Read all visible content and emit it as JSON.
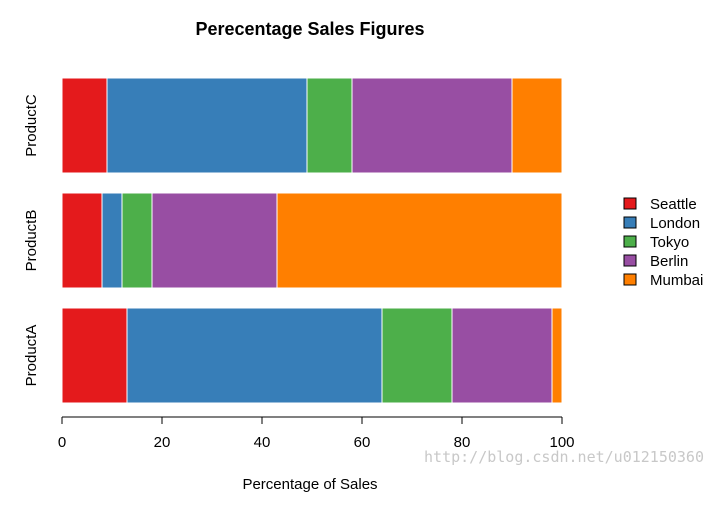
{
  "chart_data": {
    "type": "bar",
    "orientation": "horizontal",
    "stacked": true,
    "title": "Perecentage Sales Figures",
    "xlabel": "Percentage of Sales",
    "ylabel": "",
    "xlim": [
      0,
      100
    ],
    "x_ticks": [
      0,
      20,
      40,
      60,
      80,
      100
    ],
    "categories": [
      "ProductA",
      "ProductB",
      "ProductC"
    ],
    "series": [
      {
        "name": "Seattle",
        "color": "#e41a1c",
        "values": [
          13,
          8,
          9
        ]
      },
      {
        "name": "London",
        "color": "#377eb8",
        "values": [
          51,
          4,
          40
        ]
      },
      {
        "name": "Tokyo",
        "color": "#4daf4a",
        "values": [
          14,
          6,
          9
        ]
      },
      {
        "name": "Berlin",
        "color": "#984ea3",
        "values": [
          20,
          25,
          32
        ]
      },
      {
        "name": "Mumbai",
        "color": "#ff7f00",
        "values": [
          2,
          57,
          10
        ]
      }
    ],
    "legend_position": "right",
    "grid": false
  },
  "watermark": "http://blog.csdn.net/u012150360"
}
